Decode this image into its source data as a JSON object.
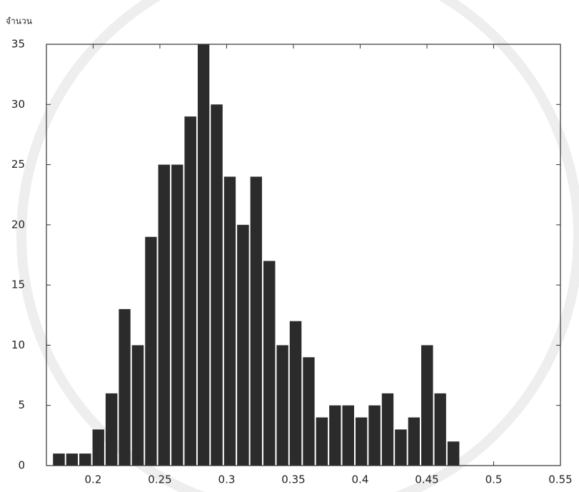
{
  "chart_data": {
    "type": "histogram",
    "y_label": "จำนวน",
    "bins": [
      0.1694,
      0.1793,
      0.1891,
      0.199,
      0.2088,
      0.2187,
      0.2285,
      0.2384,
      0.2482,
      0.2581,
      0.2679,
      0.2778,
      0.2876,
      0.2975,
      0.3073,
      0.3172,
      0.327,
      0.3369,
      0.3467,
      0.3566,
      0.3664,
      0.3763,
      0.3861,
      0.396,
      0.4058,
      0.4157,
      0.4255,
      0.4354,
      0.4452,
      0.4551,
      0.4649,
      0.4748
    ],
    "values": [
      1,
      1,
      1,
      3,
      6,
      13,
      10,
      19,
      25,
      25,
      29,
      35,
      30,
      24,
      20,
      24,
      17,
      10,
      12,
      9,
      4,
      5,
      5,
      4,
      5,
      6,
      3,
      4,
      10,
      6,
      2
    ],
    "color": "#2b2b2b",
    "xlim": [
      0.165,
      0.55
    ],
    "xticks": [
      0.2,
      0.25,
      0.3,
      0.35,
      0.4,
      0.45,
      0.5,
      0.55
    ],
    "ylim": [
      0,
      35
    ],
    "yticks": [
      0,
      5,
      10,
      15,
      20,
      25,
      30,
      35
    ],
    "grid": false
  }
}
